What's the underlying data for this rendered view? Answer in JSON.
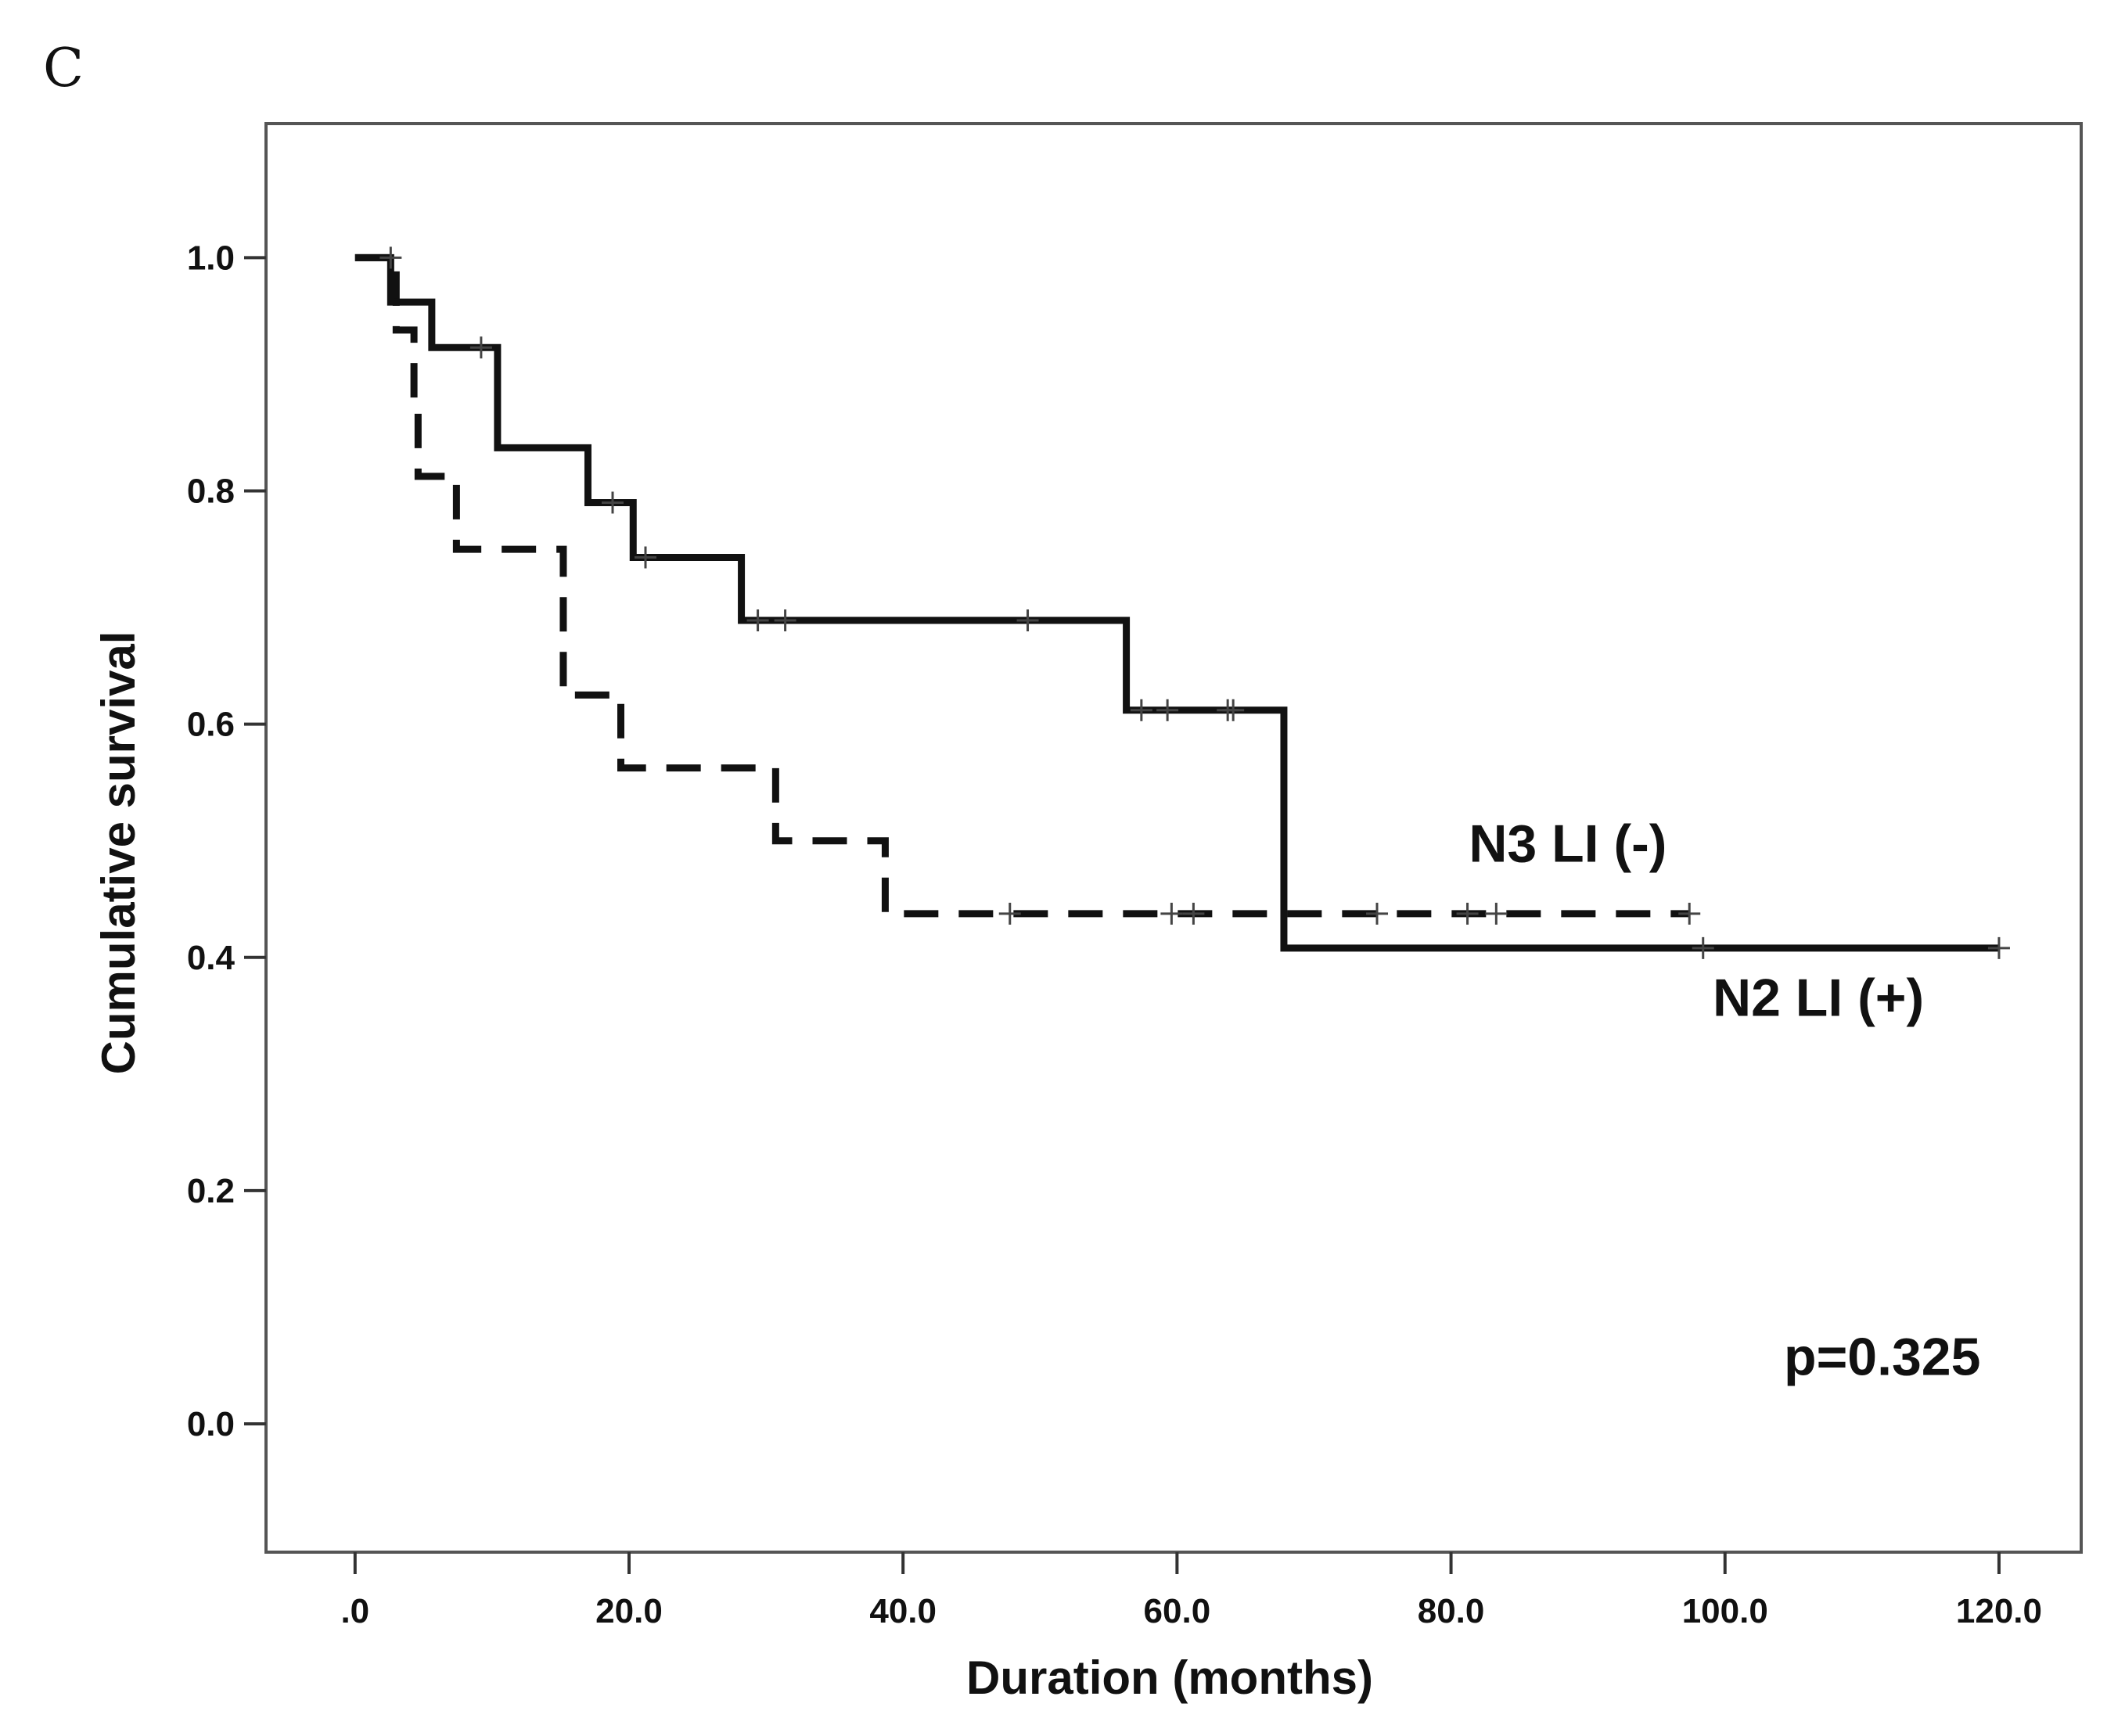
{
  "panel_label": "C",
  "chart_data": {
    "type": "line",
    "subtype": "kaplan-meier-survival",
    "title": "",
    "xlabel": "Duration (months)",
    "ylabel": "Cumulative survival",
    "xlim": [
      -6.5,
      126
    ],
    "ylim": [
      -0.11,
      1.115
    ],
    "x_ticks": [
      0,
      20,
      40,
      60,
      80,
      100,
      120
    ],
    "x_tick_labels": [
      ".0",
      "20.0",
      "40.0",
      "60.0",
      "80.0",
      "100.0",
      "120.0"
    ],
    "y_ticks": [
      0,
      0.2,
      0.4,
      0.6,
      0.8,
      1.0
    ],
    "y_tick_labels": [
      "0.0",
      "0.2",
      "0.4",
      "0.6",
      "0.8",
      "1.0"
    ],
    "grid": false,
    "series": [
      {
        "name": "N3 LI (-)",
        "style": "dashed",
        "steps": [
          [
            0,
            1.0
          ],
          [
            3.0,
            0.938
          ],
          [
            4.3,
            0.875
          ],
          [
            4.6,
            0.8125
          ],
          [
            7.4,
            0.75
          ],
          [
            15.2,
            0.625
          ],
          [
            19.4,
            0.5625
          ],
          [
            30.7,
            0.5
          ],
          [
            38.7,
            0.4375
          ]
        ],
        "end_x": 97.4,
        "censored": [
          [
            2.6,
            1.0
          ],
          [
            47.8,
            0.4375
          ],
          [
            59.6,
            0.4375
          ],
          [
            61.2,
            0.4375
          ],
          [
            74.6,
            0.4375
          ],
          [
            81.2,
            0.4375
          ],
          [
            83.3,
            0.4375
          ],
          [
            97.4,
            0.4375
          ]
        ]
      },
      {
        "name": "N2 LI (+)",
        "style": "solid",
        "steps": [
          [
            0,
            1.0
          ],
          [
            2.6,
            0.962
          ],
          [
            5.6,
            0.923
          ],
          [
            10.4,
            0.837
          ],
          [
            17.0,
            0.79
          ],
          [
            20.3,
            0.743
          ],
          [
            28.2,
            0.689
          ],
          [
            56.3,
            0.612
          ],
          [
            67.8,
            0.408
          ]
        ],
        "end_x": 120.0,
        "censored": [
          [
            9.2,
            0.923
          ],
          [
            18.8,
            0.79
          ],
          [
            21.2,
            0.743
          ],
          [
            29.4,
            0.689
          ],
          [
            31.4,
            0.689
          ],
          [
            49.1,
            0.689
          ],
          [
            57.4,
            0.612
          ],
          [
            59.3,
            0.612
          ],
          [
            63.7,
            0.612
          ],
          [
            64.1,
            0.612
          ],
          [
            98.4,
            0.408
          ],
          [
            120.0,
            0.408
          ]
        ]
      }
    ],
    "annotations": [
      {
        "text": "N3 LI (-)",
        "x": 81.3,
        "y": 0.482
      },
      {
        "text": "N2 LI (+)",
        "x": 99.1,
        "y": 0.35
      },
      {
        "text": "p=0.325",
        "x": 104.3,
        "y": 0.042
      }
    ]
  }
}
